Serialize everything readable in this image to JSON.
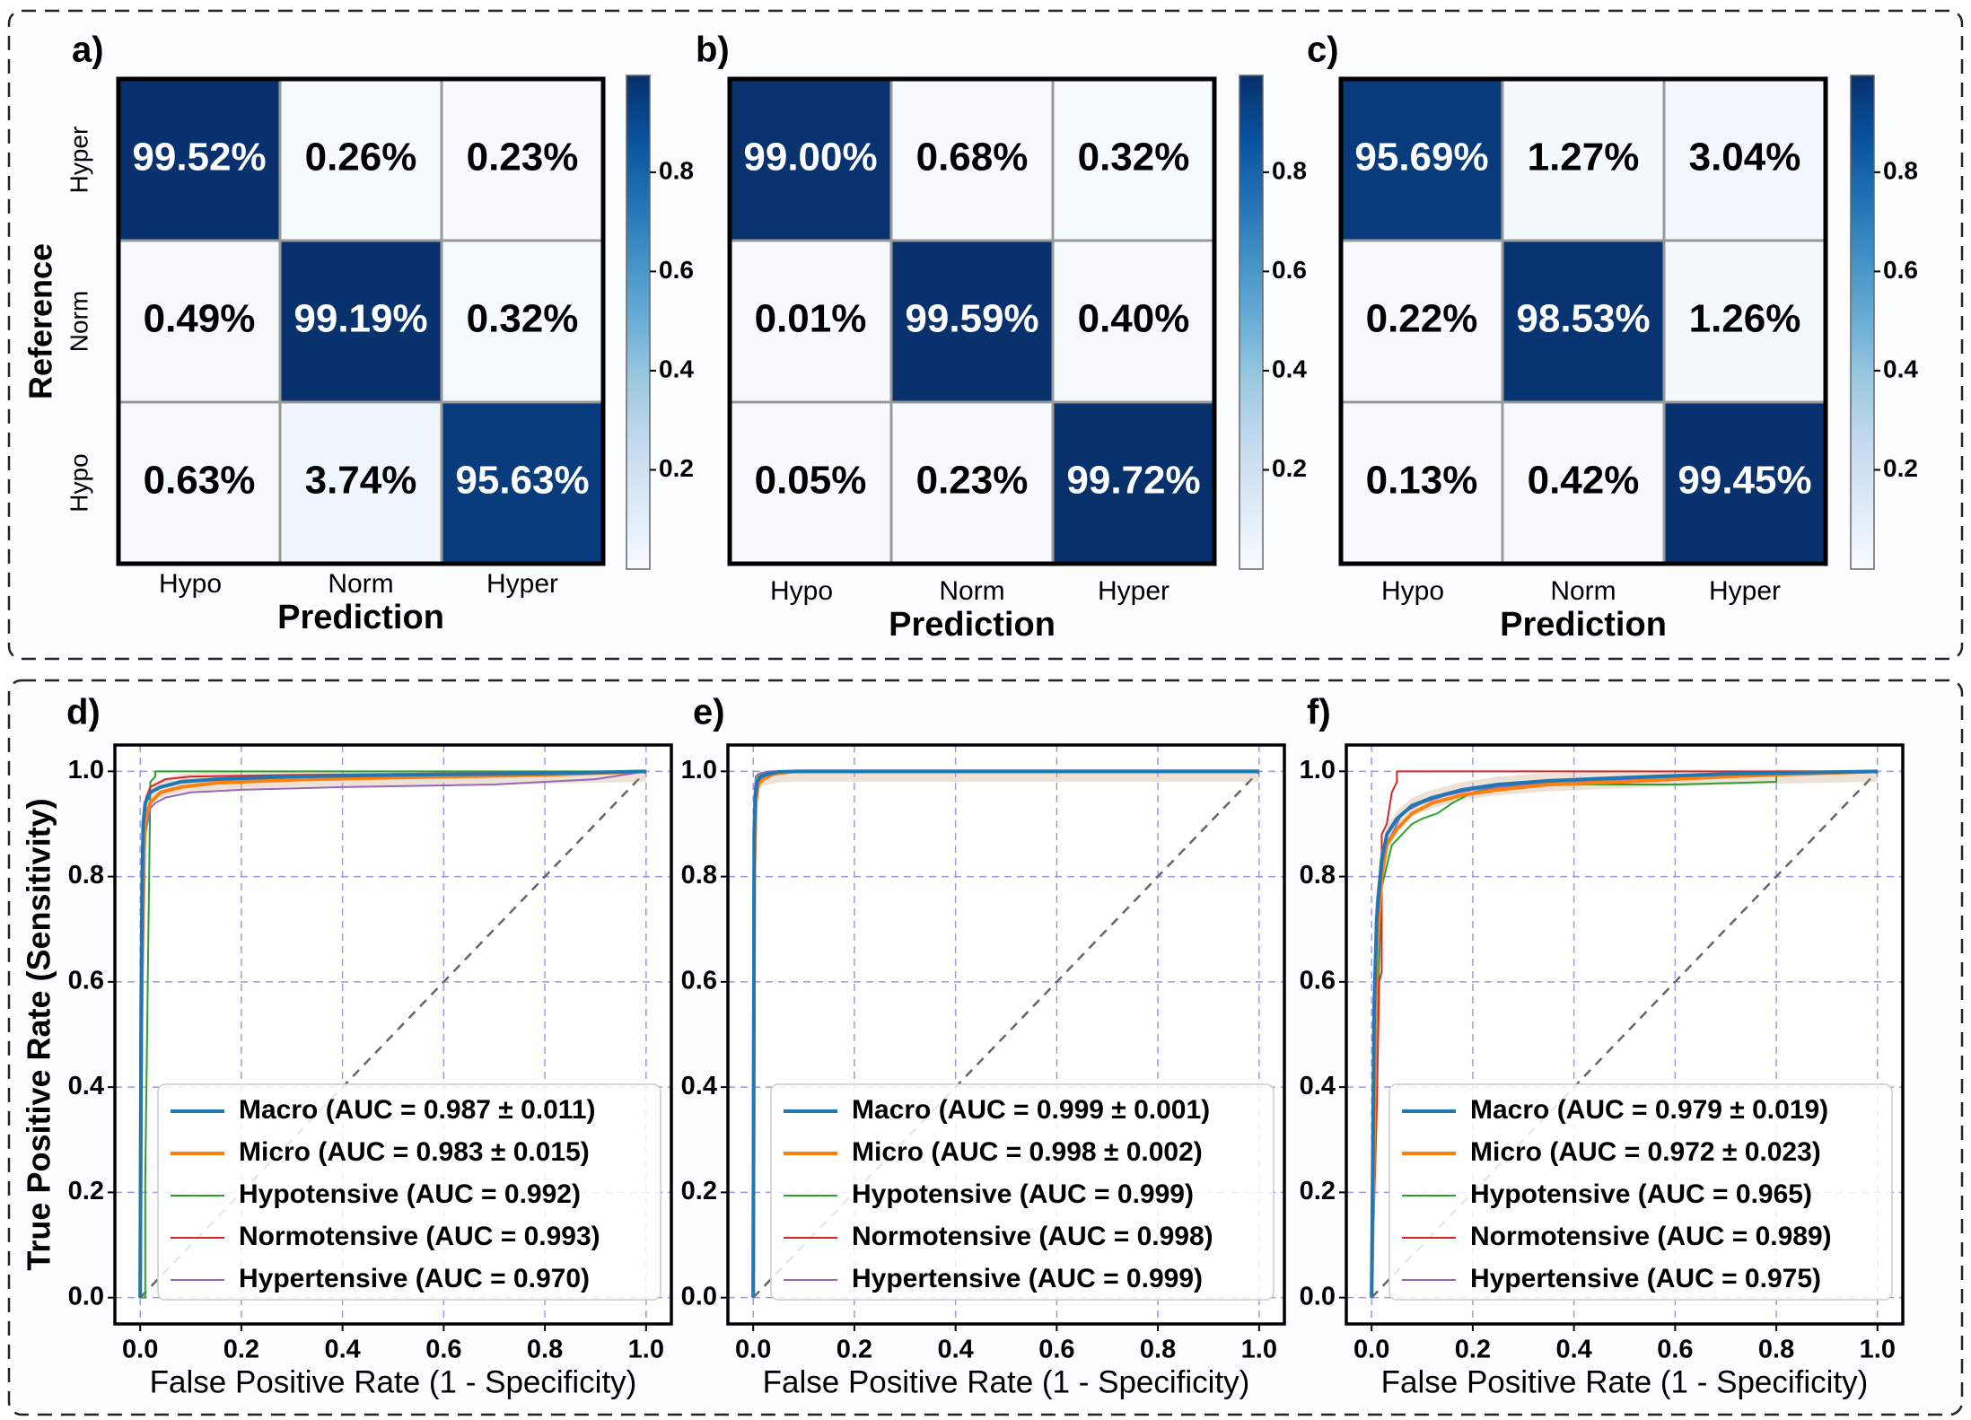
{
  "panels_top": [
    {
      "label": "a)",
      "cm": [
        [
          "99.52%",
          "0.26%",
          "0.23%"
        ],
        [
          "0.49%",
          "99.19%",
          "0.32%"
        ],
        [
          "0.63%",
          "3.74%",
          "95.63%"
        ]
      ],
      "vals": [
        [
          0.9952,
          0.0026,
          0.0023
        ],
        [
          0.0049,
          0.9919,
          0.0032
        ],
        [
          0.0063,
          0.0374,
          0.9563
        ]
      ]
    },
    {
      "label": "b)",
      "cm": [
        [
          "99.00%",
          "0.68%",
          "0.32%"
        ],
        [
          "0.01%",
          "99.59%",
          "0.40%"
        ],
        [
          "0.05%",
          "0.23%",
          "99.72%"
        ]
      ],
      "vals": [
        [
          0.99,
          0.0068,
          0.0032
        ],
        [
          0.0001,
          0.9959,
          0.004
        ],
        [
          0.0005,
          0.0023,
          0.9972
        ]
      ]
    },
    {
      "label": "c)",
      "cm": [
        [
          "95.69%",
          "1.27%",
          "3.04%"
        ],
        [
          "0.22%",
          "98.53%",
          "1.26%"
        ],
        [
          "0.13%",
          "0.42%",
          "99.45%"
        ]
      ],
      "vals": [
        [
          0.9569,
          0.0127,
          0.0304
        ],
        [
          0.0022,
          0.9853,
          0.0126
        ],
        [
          0.0013,
          0.0042,
          0.9945
        ]
      ]
    }
  ],
  "cm_axes": {
    "row_labels": [
      "Hyper",
      "Norm",
      "Hypo"
    ],
    "col_labels": [
      "Hypo",
      "Norm",
      "Hyper"
    ],
    "ylabel": "Reference",
    "xlabel": "Prediction",
    "colorbar_ticks": [
      "0.8",
      "0.6",
      "0.4",
      "0.2"
    ],
    "colorbar_values": [
      0.8,
      0.6,
      0.4,
      0.2
    ]
  },
  "roc_axes": {
    "xlabel": "False Positive Rate (1 - Specificity)",
    "ylabel": "True Positive Rate (Sensitivity)",
    "xticks": [
      "0.0",
      "0.2",
      "0.4",
      "0.6",
      "0.8",
      "1.0"
    ],
    "yticks": [
      "0.0",
      "0.2",
      "0.4",
      "0.6",
      "0.8",
      "1.0"
    ],
    "xlim": [
      -0.05,
      1.05
    ],
    "ylim": [
      -0.05,
      1.05
    ]
  },
  "colors": {
    "macro": "#1f77b4",
    "micro": "#ff7f0e",
    "hypo": "#2ca02c",
    "norm": "#d62728",
    "hyper": "#9467bd",
    "grid": "#9999ee",
    "cm_dark": "#08306b",
    "cm_light": "#f7fbff"
  },
  "chart_data": [
    {
      "type": "heatmap",
      "panel": "a)",
      "rows": [
        "Hyper",
        "Norm",
        "Hypo"
      ],
      "columns": [
        "Hypo",
        "Norm",
        "Hyper"
      ],
      "values": [
        [
          99.52,
          0.26,
          0.23
        ],
        [
          0.49,
          99.19,
          0.32
        ],
        [
          0.63,
          3.74,
          95.63
        ]
      ],
      "xlabel": "Prediction",
      "ylabel": "Reference"
    },
    {
      "type": "heatmap",
      "panel": "b)",
      "rows": [
        "Hyper",
        "Norm",
        "Hypo"
      ],
      "columns": [
        "Hypo",
        "Norm",
        "Hyper"
      ],
      "values": [
        [
          99.0,
          0.68,
          0.32
        ],
        [
          0.01,
          99.59,
          0.4
        ],
        [
          0.05,
          0.23,
          99.72
        ]
      ],
      "xlabel": "Prediction"
    },
    {
      "type": "heatmap",
      "panel": "c)",
      "rows": [
        "Hyper",
        "Norm",
        "Hypo"
      ],
      "columns": [
        "Hypo",
        "Norm",
        "Hyper"
      ],
      "values": [
        [
          95.69,
          1.27,
          3.04
        ],
        [
          0.22,
          98.53,
          1.26
        ],
        [
          0.13,
          0.42,
          99.45
        ]
      ],
      "xlabel": "Prediction"
    },
    {
      "type": "line",
      "panel": "d)",
      "xlabel": "False Positive Rate (1 - Specificity)",
      "ylabel": "True Positive Rate (Sensitivity)",
      "xlim": [
        -0.05,
        1.05
      ],
      "ylim": [
        -0.05,
        1.05
      ],
      "grid": true,
      "legend_position": "bottom-right",
      "series": [
        {
          "name": "Macro (AUC = 0.987 ± 0.011)",
          "key": "macro",
          "x": [
            0,
            0.002,
            0.004,
            0.006,
            0.01,
            0.02,
            0.04,
            0.08,
            0.15,
            0.3,
            0.5,
            0.8,
            1.0
          ],
          "y": [
            0,
            0.56,
            0.8,
            0.9,
            0.94,
            0.96,
            0.97,
            0.98,
            0.985,
            0.99,
            0.993,
            0.996,
            1.0
          ]
        },
        {
          "name": "Micro (AUC = 0.983 ± 0.015)",
          "key": "micro",
          "x": [
            0,
            0.002,
            0.005,
            0.01,
            0.02,
            0.04,
            0.08,
            0.15,
            0.3,
            0.5,
            0.8,
            1.0
          ],
          "y": [
            0,
            0.5,
            0.78,
            0.91,
            0.94,
            0.96,
            0.97,
            0.978,
            0.984,
            0.988,
            0.993,
            1.0
          ]
        },
        {
          "name": "Hypotensive (AUC = 0.992)",
          "key": "hypo",
          "x": [
            0,
            0.01,
            0.01,
            0.015,
            0.02,
            0.02,
            0.03,
            0.03,
            1.0
          ],
          "y": [
            0,
            0,
            0.22,
            0.6,
            0.97,
            0.98,
            0.99,
            1.0,
            1.0
          ]
        },
        {
          "name": "Normotensive (AUC = 0.993)",
          "key": "norm",
          "x": [
            0,
            0.004,
            0.004,
            0.008,
            0.012,
            0.02,
            0.05,
            0.1,
            0.3,
            0.6,
            1.0
          ],
          "y": [
            0,
            0.56,
            0.8,
            0.92,
            0.95,
            0.97,
            0.985,
            0.99,
            0.993,
            0.996,
            1.0
          ]
        },
        {
          "name": "Hypertensive (AUC = 0.970)",
          "key": "hyper",
          "x": [
            0,
            0.005,
            0.01,
            0.02,
            0.03,
            0.05,
            0.1,
            0.2,
            0.4,
            0.7,
            0.9,
            1.0
          ],
          "y": [
            0,
            0.6,
            0.88,
            0.93,
            0.94,
            0.95,
            0.96,
            0.965,
            0.97,
            0.975,
            0.985,
            1.0
          ]
        }
      ]
    },
    {
      "type": "line",
      "panel": "e)",
      "xlabel": "False Positive Rate (1 - Specificity)",
      "xlim": [
        -0.05,
        1.05
      ],
      "ylim": [
        -0.05,
        1.05
      ],
      "grid": true,
      "legend_position": "bottom-right",
      "series": [
        {
          "name": "Macro (AUC = 0.999 ± 0.001)",
          "key": "macro",
          "x": [
            0,
            0.002,
            0.004,
            0.008,
            0.015,
            0.03,
            0.05,
            0.1,
            1.0
          ],
          "y": [
            0,
            0.88,
            0.95,
            0.98,
            0.99,
            0.995,
            0.999,
            1.0,
            1.0
          ]
        },
        {
          "name": "Micro (AUC = 0.998 ± 0.002)",
          "key": "micro",
          "x": [
            0,
            0.002,
            0.005,
            0.01,
            0.02,
            0.04,
            0.08,
            1.0
          ],
          "y": [
            0,
            0.8,
            0.94,
            0.975,
            0.985,
            0.995,
            1.0,
            1.0
          ]
        },
        {
          "name": "Hypotensive (AUC = 0.999)",
          "key": "hypo",
          "x": [
            0,
            0.003,
            0.003,
            0.01,
            0.02,
            0.05,
            1.0
          ],
          "y": [
            0,
            0.9,
            0.97,
            0.99,
            0.995,
            1.0,
            1.0
          ]
        },
        {
          "name": "Normotensive (AUC = 0.998)",
          "key": "norm",
          "x": [
            0,
            0.003,
            0.003,
            0.008,
            0.02,
            0.04,
            1.0
          ],
          "y": [
            0,
            0.8,
            0.96,
            0.98,
            0.99,
            1.0,
            1.0
          ]
        },
        {
          "name": "Hypertensive (AUC = 0.999)",
          "key": "hyper",
          "x": [
            0,
            0.002,
            0.005,
            0.01,
            0.03,
            1.0
          ],
          "y": [
            0,
            0.95,
            0.99,
            0.995,
            1.0,
            1.0
          ]
        }
      ]
    },
    {
      "type": "line",
      "panel": "f)",
      "xlabel": "False Positive Rate (1 - Specificity)",
      "xlim": [
        -0.05,
        1.05
      ],
      "ylim": [
        -0.05,
        1.05
      ],
      "grid": true,
      "legend_position": "bottom-right",
      "series": [
        {
          "name": "Macro (AUC = 0.979 ± 0.019)",
          "key": "macro",
          "x": [
            0,
            0.005,
            0.01,
            0.02,
            0.03,
            0.05,
            0.08,
            0.12,
            0.18,
            0.25,
            0.35,
            0.5,
            0.7,
            1.0
          ],
          "y": [
            0,
            0.55,
            0.72,
            0.83,
            0.88,
            0.91,
            0.935,
            0.95,
            0.965,
            0.975,
            0.982,
            0.988,
            0.995,
            1.0
          ]
        },
        {
          "name": "Micro (AUC = 0.972 ± 0.023)",
          "key": "micro",
          "x": [
            0,
            0.005,
            0.01,
            0.02,
            0.03,
            0.05,
            0.08,
            0.12,
            0.18,
            0.25,
            0.35,
            0.5,
            0.7,
            1.0
          ],
          "y": [
            0,
            0.3,
            0.65,
            0.8,
            0.86,
            0.89,
            0.92,
            0.94,
            0.955,
            0.965,
            0.975,
            0.98,
            0.99,
            1.0
          ]
        },
        {
          "name": "Hypotensive (AUC = 0.965)",
          "key": "hypo",
          "x": [
            0,
            0.01,
            0.02,
            0.04,
            0.06,
            0.08,
            0.1,
            0.13,
            0.16,
            0.2,
            0.25,
            0.4,
            0.6,
            0.8,
            0.8,
            1.0
          ],
          "y": [
            0,
            0.5,
            0.78,
            0.86,
            0.88,
            0.9,
            0.91,
            0.92,
            0.94,
            0.96,
            0.97,
            0.975,
            0.975,
            0.98,
            1.0,
            1.0
          ]
        },
        {
          "name": "Normotensive (AUC = 0.989)",
          "key": "norm",
          "x": [
            0,
            0.01,
            0.015,
            0.02,
            0.02,
            0.03,
            0.04,
            0.05,
            0.05,
            0.1,
            0.1,
            1.0
          ],
          "y": [
            0,
            0.35,
            0.6,
            0.62,
            0.88,
            0.9,
            0.96,
            0.98,
            1.0,
            1.0,
            1.0,
            1.0
          ]
        },
        {
          "name": "Hypertensive (AUC = 0.975)",
          "key": "hyper",
          "x": [
            0,
            0.005,
            0.01,
            0.02,
            0.04,
            0.06,
            0.1,
            0.15,
            0.2,
            0.3,
            0.5,
            0.8,
            1.0
          ],
          "y": [
            0,
            0.6,
            0.75,
            0.85,
            0.88,
            0.92,
            0.94,
            0.955,
            0.965,
            0.975,
            0.985,
            0.995,
            1.0
          ]
        }
      ]
    }
  ]
}
